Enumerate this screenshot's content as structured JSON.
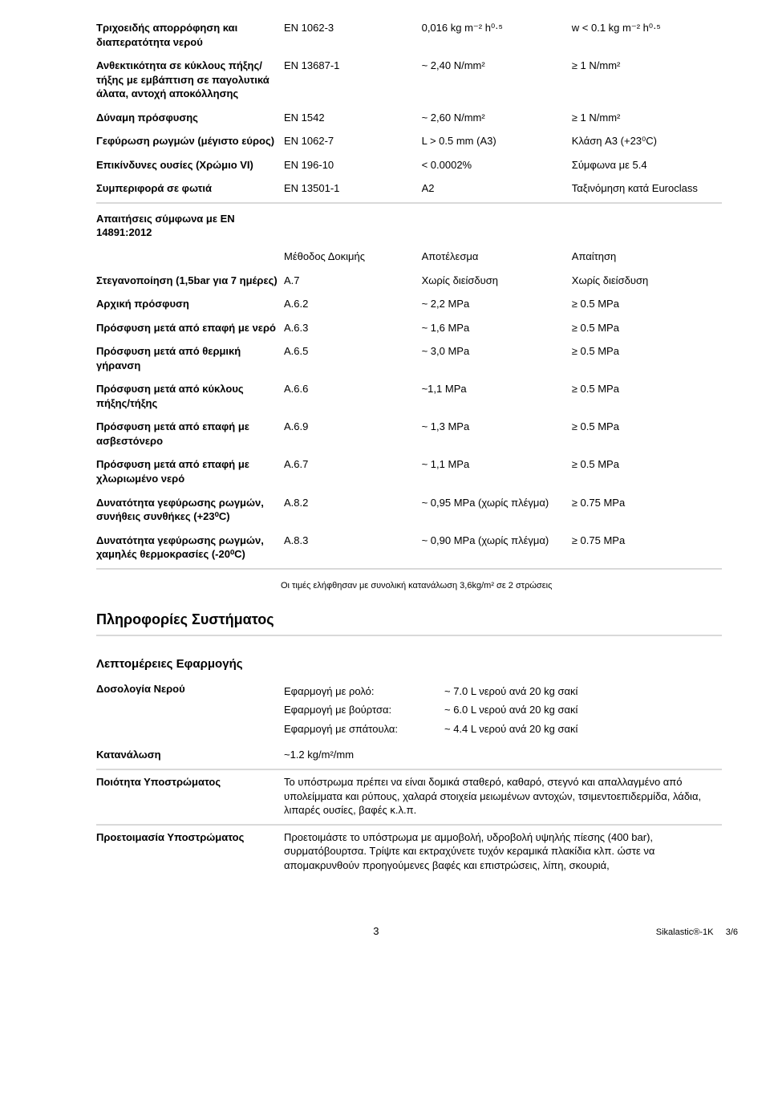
{
  "table1": {
    "rows": [
      {
        "label": "Τριχοειδής απορρόφηση και διαπερατότητα νερού",
        "c2": "EN 1062-3",
        "c3": "0,016 kg m⁻² h⁰·⁵",
        "c4": "w < 0.1 kg m⁻² h⁰·⁵",
        "rule": false
      },
      {
        "label": "Ανθεκτικότητα σε κύκλους πήξης/τήξης με εμβάπτιση σε παγολυτικά άλατα, αντοχή αποκόλλησης",
        "c2": "EN 13687-1",
        "c3": "~ 2,40 N/mm²",
        "c4": "≥ 1 N/mm²",
        "rule": false
      },
      {
        "label": "Δύναμη πρόσφυσης",
        "c2": "EN 1542",
        "c3": "~ 2,60 N/mm²",
        "c4": "≥ 1 N/mm²",
        "rule": false
      },
      {
        "label": "Γεφύρωση ρωγμών (μέγιστο εύρος)",
        "c2": "EN 1062-7",
        "c3": "L > 0.5 mm (A3)",
        "c4": "Κλάση A3 (+23⁰C)",
        "rule": false
      },
      {
        "label": "Επικίνδυνες ουσίες (Χρώμιο VI)",
        "c2": "EN 196-10",
        "c3": "< 0.0002%",
        "c4": "Σύμφωνα με 5.4",
        "rule": false
      },
      {
        "label": "Συμπεριφορά σε φωτιά",
        "c2": "EN 13501-1",
        "c3": "A2",
        "c4": "Ταξινόμηση κατά Euroclass",
        "rule": true
      }
    ]
  },
  "table2": {
    "heading_row_label": "Απαιτήσεις σύμφωνα με EN 14891:2012",
    "header": {
      "c2": "Μέθοδος Δοκιμής",
      "c3": "Αποτέλεσμα",
      "c4": "Απαίτηση"
    },
    "rows": [
      {
        "label": "Στεγανοποίηση (1,5bar για 7 ημέρες)",
        "c2": "A.7",
        "c3": "Χωρίς διείσδυση",
        "c4": "Χωρίς διείσδυση"
      },
      {
        "label": "Αρχική πρόσφυση",
        "c2": "A.6.2",
        "c3": "~ 2,2 MPa",
        "c4": "≥ 0.5 MPa"
      },
      {
        "label": "Πρόσφυση μετά από επαφή με νερό",
        "c2": "A.6.3",
        "c3": "~ 1,6 MPa",
        "c4": "≥ 0.5 MPa"
      },
      {
        "label": "Πρόσφυση μετά από θερμική γήρανση",
        "c2": "A.6.5",
        "c3": "~ 3,0 MPa",
        "c4": "≥ 0.5 MPa"
      },
      {
        "label": "Πρόσφυση μετά από κύκλους πήξης/τήξης",
        "c2": "A.6.6",
        "c3": "~1,1 MPa",
        "c4": "≥ 0.5 MPa"
      },
      {
        "label": "Πρόσφυση μετά από επαφή με ασβεστόνερο",
        "c2": "A.6.9",
        "c3": "~ 1,3 MPa",
        "c4": "≥ 0.5 MPa"
      },
      {
        "label": "Πρόσφυση μετά από επαφή με χλωριωμένο νερό",
        "c2": "A.6.7",
        "c3": "~ 1,1 MPa",
        "c4": "≥ 0.5 MPa"
      },
      {
        "label": "Δυνατότητα γεφύρωσης ρωγμών, συνήθεις συνθήκες (+23⁰C)",
        "c2": "A.8.2",
        "c3": "~ 0,95 MPa (χωρίς πλέγμα)",
        "c4": "≥ 0.75 MPa"
      },
      {
        "label": "Δυνατότητα γεφύρωσης ρωγμών, χαμηλές θερμοκρασίες (-20⁰C)",
        "c2": "A.8.3",
        "c3": "~ 0,90 MPa (χωρίς πλέγμα)",
        "c4": "≥ 0.75 MPa"
      }
    ]
  },
  "footnote": "Οι τιμές ελήφθησαν με συνολική κατανάλωση 3,6kg/m² σε 2 στρώσεις",
  "sections": {
    "sysinfo": "Πληροφορίες Συστήματος",
    "appdetails": "Λεπτομέρειες Εφαρμογής"
  },
  "water": {
    "label": "Δοσολογία Νερού",
    "rows": [
      {
        "method": "Εφαρμογή με ρολό:",
        "value": "~ 7.0 L νερού ανά 20 kg σακί"
      },
      {
        "method": "Εφαρμογή με βούρτσα:",
        "value": "~ 6.0 L νερού ανά 20 kg σακί"
      },
      {
        "method": "Εφαρμογή με σπάτουλα:",
        "value": "~ 4.4 L νερού ανά 20 kg σακί"
      }
    ]
  },
  "consumption": {
    "label": "Κατανάλωση",
    "value": "~1.2 kg/m²/mm"
  },
  "substrate_quality": {
    "label": "Ποιότητα Υποστρώματος",
    "text": "Το υπόστρωμα πρέπει να είναι δομικά σταθερό, καθαρό, στεγνό και απαλλαγμένο από υπολείμματα και ρύπους, χαλαρά στοιχεία μειωμένων αντοχών, τσιμεντοεπιδερμίδα, λάδια, λιπαρές ουσίες, βαφές κ.λ.π."
  },
  "substrate_prep": {
    "label": "Προετοιμασία Υποστρώματος",
    "text": "Προετοιμάστε το υπόστρωμα με αμμοβολή, υδροβολή υψηλής πίεσης (400 bar), συρματόβουρτσα. Τρίψτε και εκτραχύνετε τυχόν κεραμικά πλακίδια κλπ. ώστε να απομακρυνθούν προηγούμενες βαφές και επιστρώσεις, λίπη, σκουριά,"
  },
  "footer": {
    "pagenum": "3",
    "product": "Sikalastic®-1K",
    "pager": "3/6"
  },
  "colors": {
    "rule": "#d9d9d9",
    "text": "#000000",
    "bg": "#ffffff"
  }
}
